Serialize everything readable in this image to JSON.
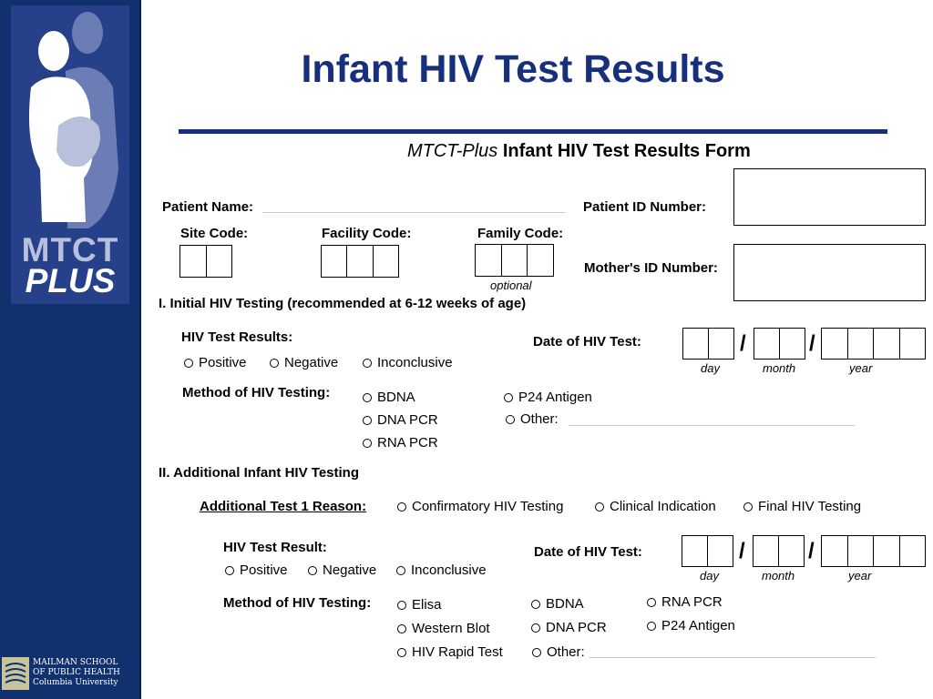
{
  "sidebar": {
    "logo_line1": "MTCT",
    "logo_line2": "PLUS",
    "school_line1": "MAILMAN SCHOOL",
    "school_line2": "OF PUBLIC HEALTH",
    "school_line3": "Columbia University"
  },
  "colors": {
    "navy": "#10306e",
    "title_blue": "#18307c"
  },
  "header": {
    "title": "Infant HIV Test Results",
    "subtitle_italic": "MTCT-Plus",
    "subtitle_bold": "Infant HIV Test Results Form"
  },
  "patient": {
    "name_label": "Patient Name:",
    "id_label": "Patient ID Number:",
    "mother_id_label": "Mother's ID Number:",
    "site_label": "Site Code:",
    "facility_label": "Facility Code:",
    "family_label": "Family Code:",
    "optional_note": "optional"
  },
  "section1": {
    "heading": "I.  Initial HIV Testing (recommended at 6-12 weeks of age)",
    "results_label": "HIV Test Results:",
    "results": [
      "Positive",
      "Negative",
      "Inconclusive"
    ],
    "date_label": "Date of HIV Test:",
    "date_captions": [
      "day",
      "month",
      "year"
    ],
    "date_separator": "/",
    "method_label": "Method of HIV Testing:",
    "methods": [
      "BDNA",
      "DNA PCR",
      "RNA PCR",
      "P24 Antigen",
      "Other:"
    ]
  },
  "section2": {
    "heading": "II. Additional Infant HIV Testing",
    "reason_label": "Additional Test 1 Reason:",
    "reasons": [
      "Confirmatory HIV Testing",
      "Clinical Indication",
      "Final HIV Testing"
    ],
    "result_label": "HIV Test Result:",
    "results": [
      "Positive",
      "Negative",
      "Inconclusive"
    ],
    "date_label": "Date of HIV Test:",
    "date_captions": [
      "day",
      "month",
      "year"
    ],
    "date_separator": "/",
    "method_label": "Method of HIV Testing:",
    "methods": [
      "Elisa",
      "Western Blot",
      "HIV Rapid Test",
      "BDNA",
      "DNA PCR",
      "Other:",
      "RNA PCR",
      "P24 Antigen"
    ]
  }
}
